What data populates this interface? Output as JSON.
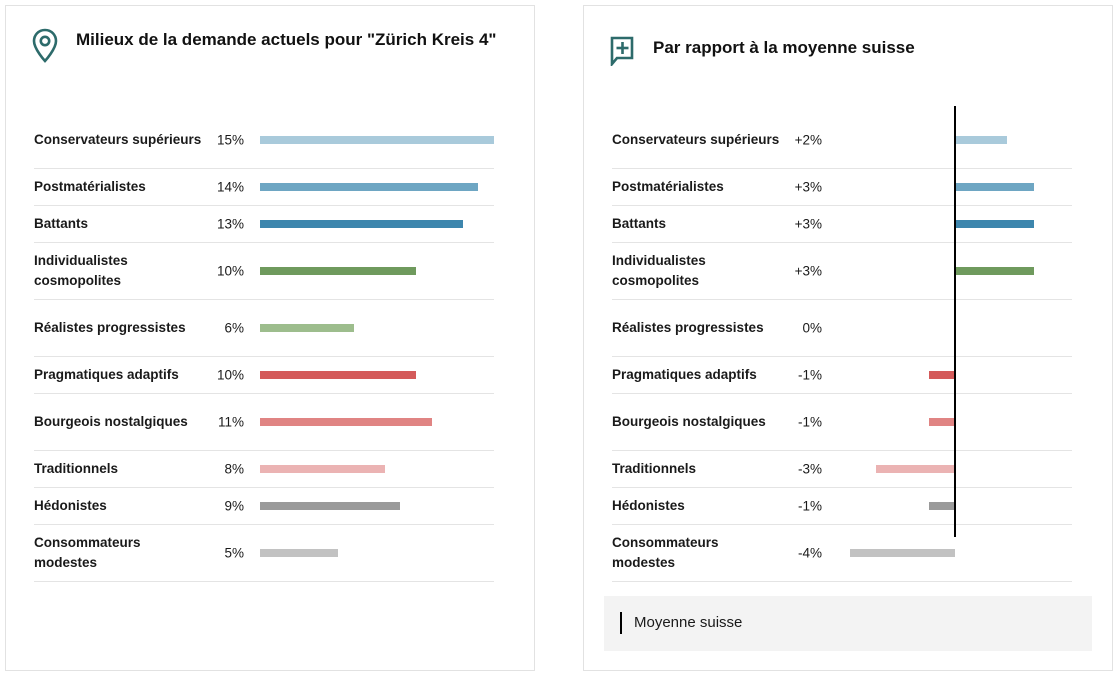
{
  "left_card": {
    "title": "Milieux de la demande actuels pour \"Zürich Kreis 4\""
  },
  "right_card": {
    "title": "Par rapport à la moyenne suisse",
    "legend_label": "Moyenne suisse"
  },
  "icons": {
    "left": "location-pin-icon",
    "right": "plus-flag-icon"
  },
  "colors": {
    "icon_teal": "#2d6b6b"
  },
  "chart_data": [
    {
      "type": "bar",
      "orientation": "horizontal",
      "title": "Milieux de la demande actuels pour \"Zürich Kreis 4\"",
      "unit": "%",
      "xlim": [
        0,
        15
      ],
      "categories": [
        "Conservateurs supérieurs",
        "Postmatérialistes",
        "Battants",
        "Individualistes cosmopolites",
        "Réalistes progressistes",
        "Pragmatiques adaptifs",
        "Bourgeois nostalgiques",
        "Traditionnels",
        "Hédonistes",
        "Consommateurs modestes"
      ],
      "values": [
        15,
        14,
        13,
        10,
        6,
        10,
        11,
        8,
        9,
        5
      ],
      "value_labels": [
        "15%",
        "14%",
        "13%",
        "10%",
        "6%",
        "10%",
        "11%",
        "8%",
        "9%",
        "5%"
      ],
      "colors": [
        "#a9cadb",
        "#6ea6c3",
        "#3d86ad",
        "#6f9a5d",
        "#9dbd8d",
        "#d45a5a",
        "#e08483",
        "#ebb3b3",
        "#9a9a9a",
        "#c2c2c2"
      ]
    },
    {
      "type": "bar",
      "orientation": "horizontal",
      "title": "Par rapport à la moyenne suisse",
      "unit": "%",
      "xlim": [
        -4,
        3
      ],
      "reference_line": 0,
      "reference_label": "Moyenne suisse",
      "categories": [
        "Conservateurs supérieurs",
        "Postmatérialistes",
        "Battants",
        "Individualistes cosmopolites",
        "Réalistes progressistes",
        "Pragmatiques adaptifs",
        "Bourgeois nostalgiques",
        "Traditionnels",
        "Hédonistes",
        "Consommateurs modestes"
      ],
      "values": [
        2,
        3,
        3,
        3,
        0,
        -1,
        -1,
        -3,
        -1,
        -4
      ],
      "value_labels": [
        "+2%",
        "+3%",
        "+3%",
        "+3%",
        "0%",
        "-1%",
        "-1%",
        "-3%",
        "-1%",
        "-4%"
      ],
      "colors": [
        "#a9cadb",
        "#6ea6c3",
        "#3d86ad",
        "#6f9a5d",
        "#9dbd8d",
        "#d45a5a",
        "#e08483",
        "#ebb3b3",
        "#9a9a9a",
        "#c2c2c2"
      ]
    }
  ]
}
